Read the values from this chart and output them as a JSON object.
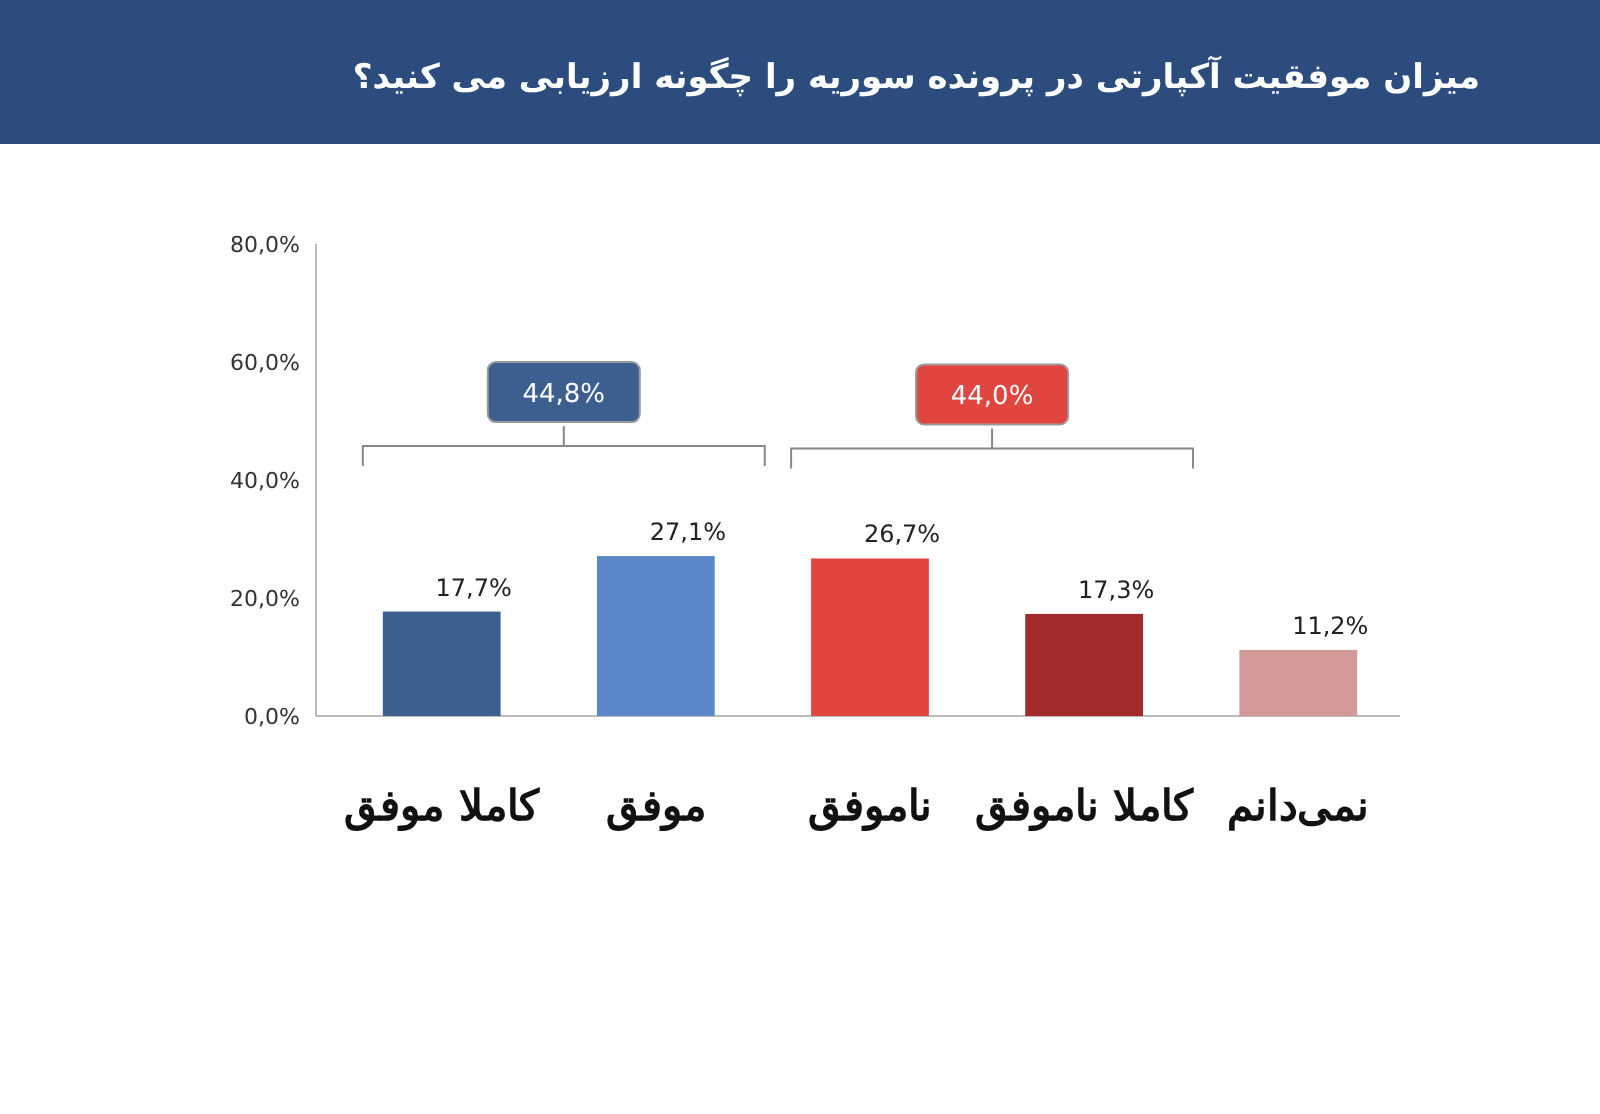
{
  "chart_data": {
    "type": "bar",
    "title": "میزان موفقیت آکپارتی در پرونده سوریه را چگونه ارزیابی می کنید؟",
    "categories": [
      "کاملا موفق",
      "موفق",
      "ناموفق",
      "کاملا ناموفق",
      "نمی‌دانم"
    ],
    "values": [
      17.7,
      27.1,
      26.7,
      17.3,
      11.2
    ],
    "colors": [
      "#3d5f8f",
      "#5b87c8",
      "#e0463f",
      "#a32a2a",
      "#d49a9a"
    ],
    "value_labels": [
      "17,7%",
      "27,1%",
      "26,7%",
      "17,3%",
      "11,2%"
    ],
    "ylim": [
      0,
      80
    ],
    "yticks": [
      {
        "value": 0,
        "label": "0,0%"
      },
      {
        "value": 20,
        "label": "20,0%"
      },
      {
        "value": 40,
        "label": "40,0%"
      },
      {
        "value": 60,
        "label": "60,0%"
      },
      {
        "value": 80,
        "label": "80,0%"
      }
    ],
    "annotations": [
      "44,8%",
      "44,0%"
    ],
    "grid": false
  }
}
